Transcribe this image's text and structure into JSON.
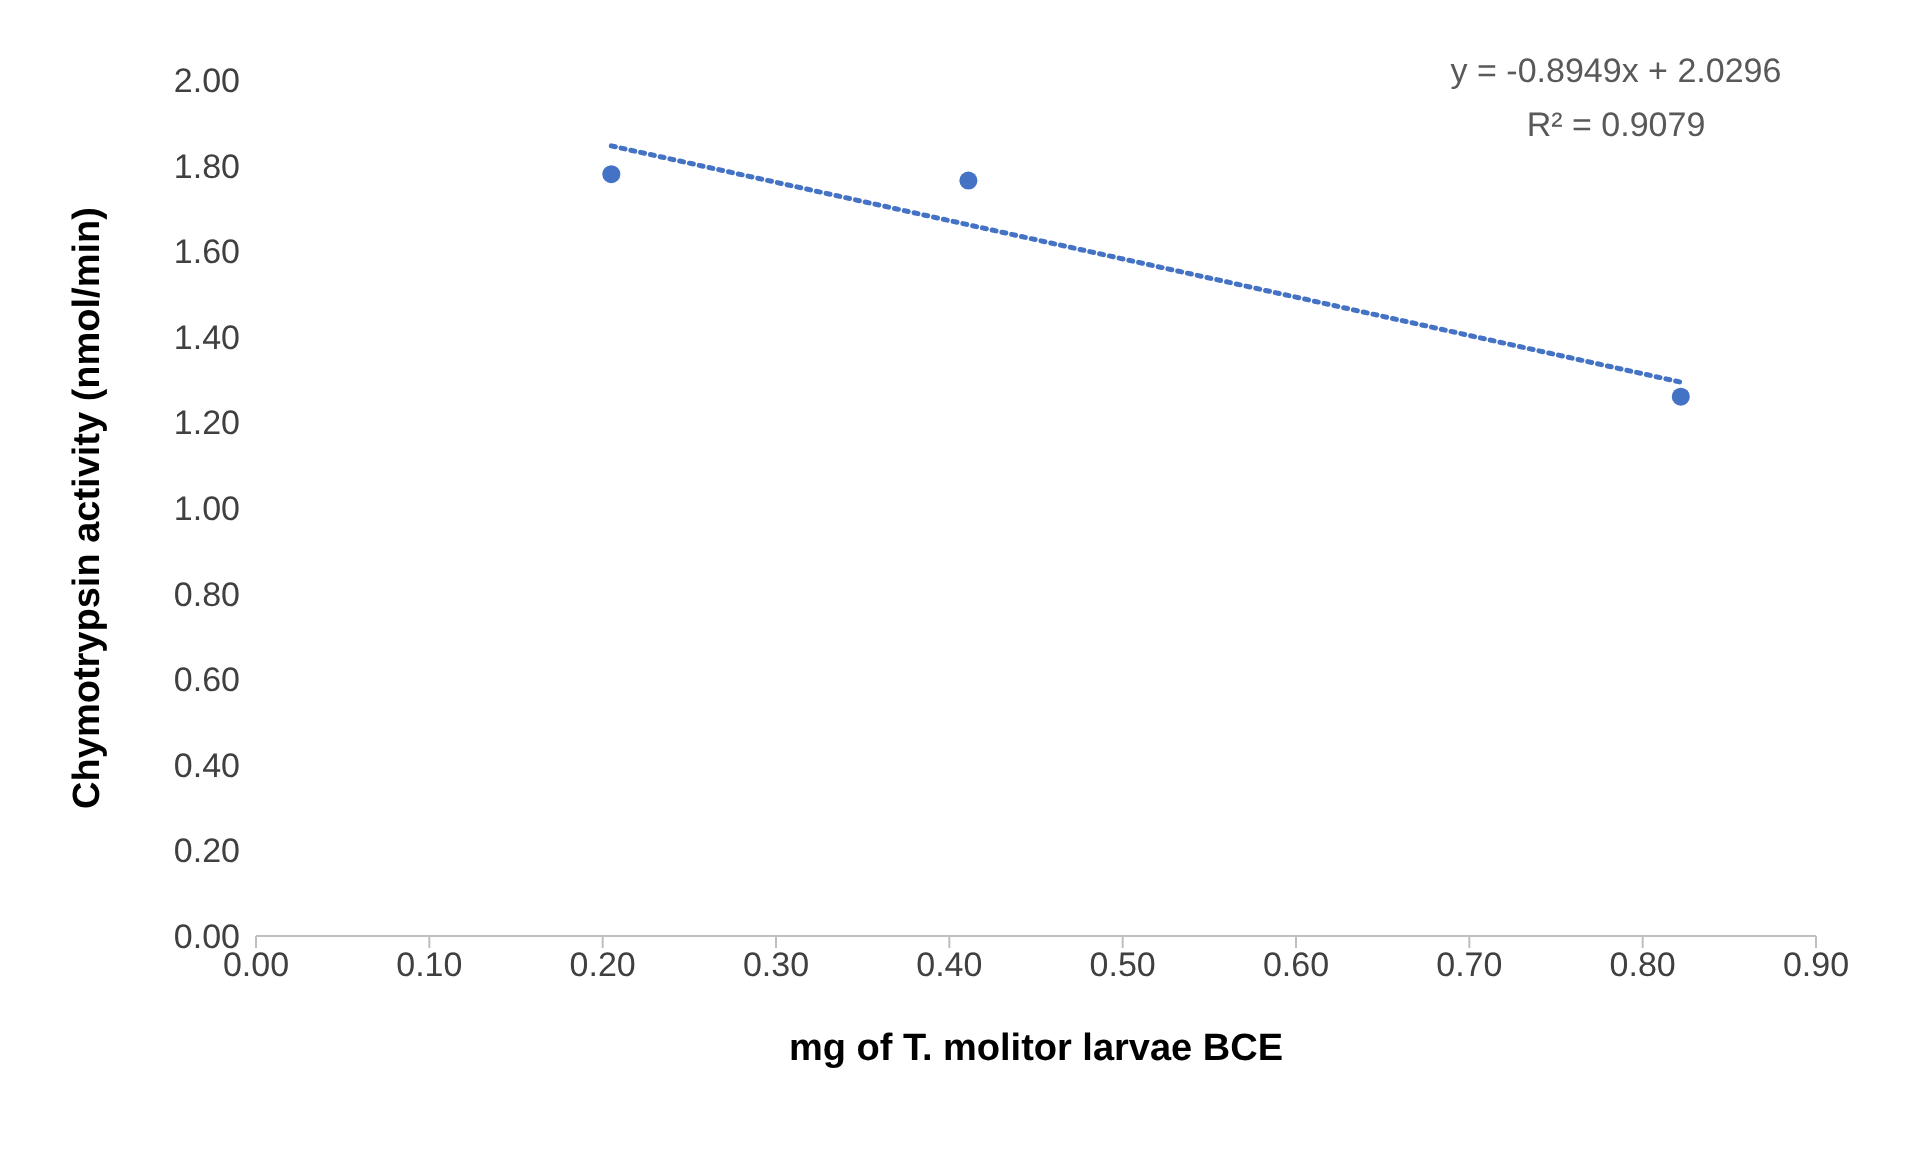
{
  "chart_data": {
    "type": "scatter",
    "xlabel": "mg of T. molitor larvae BCE",
    "ylabel": "Chymotrypsin activity (nmol/min)",
    "xlim": [
      0,
      0.9
    ],
    "xticks": [
      {
        "value": 0,
        "label": "0.00"
      },
      {
        "value": 0.1,
        "label": "0.10"
      },
      {
        "value": 0.2,
        "label": "0.20"
      },
      {
        "value": 0.3,
        "label": "0.30"
      },
      {
        "value": 0.4,
        "label": "0.40"
      },
      {
        "value": 0.5,
        "label": "0.50"
      },
      {
        "value": 0.6,
        "label": "0.60"
      },
      {
        "value": 0.7,
        "label": "0.70"
      },
      {
        "value": 0.8,
        "label": "0.80"
      },
      {
        "value": 0.9,
        "label": "0.90"
      }
    ],
    "ylim": [
      0,
      2
    ],
    "yticks": [
      {
        "value": 0,
        "label": "0.00"
      },
      {
        "value": 0.2,
        "label": "0.20"
      },
      {
        "value": 0.4,
        "label": "0.40"
      },
      {
        "value": 0.6,
        "label": "0.60"
      },
      {
        "value": 0.8,
        "label": "0.80"
      },
      {
        "value": 1,
        "label": "1.00"
      },
      {
        "value": 1.2,
        "label": "1.20"
      },
      {
        "value": 1.4,
        "label": "1.40"
      },
      {
        "value": 1.6,
        "label": "1.60"
      },
      {
        "value": 1.8,
        "label": "1.80"
      },
      {
        "value": 2,
        "label": "2.00"
      }
    ],
    "x": [
      0.205,
      0.411,
      0.822
    ],
    "marker": "circle",
    "grid": false,
    "legend": false,
    "series": [
      {
        "color": "#4472c4",
        "values": [
          1.78,
          1.765,
          1.26
        ]
      },
      {
        "type": "line",
        "color": "#4472c4",
        "line_style": "dotted",
        "marker": "none",
        "x": [
          0.205,
          0.822
        ],
        "values": [
          1.846,
          1.294
        ]
      }
    ],
    "annotations": [
      "y = -0.8949x + 2.0296",
      "R² = 0.9079"
    ]
  }
}
